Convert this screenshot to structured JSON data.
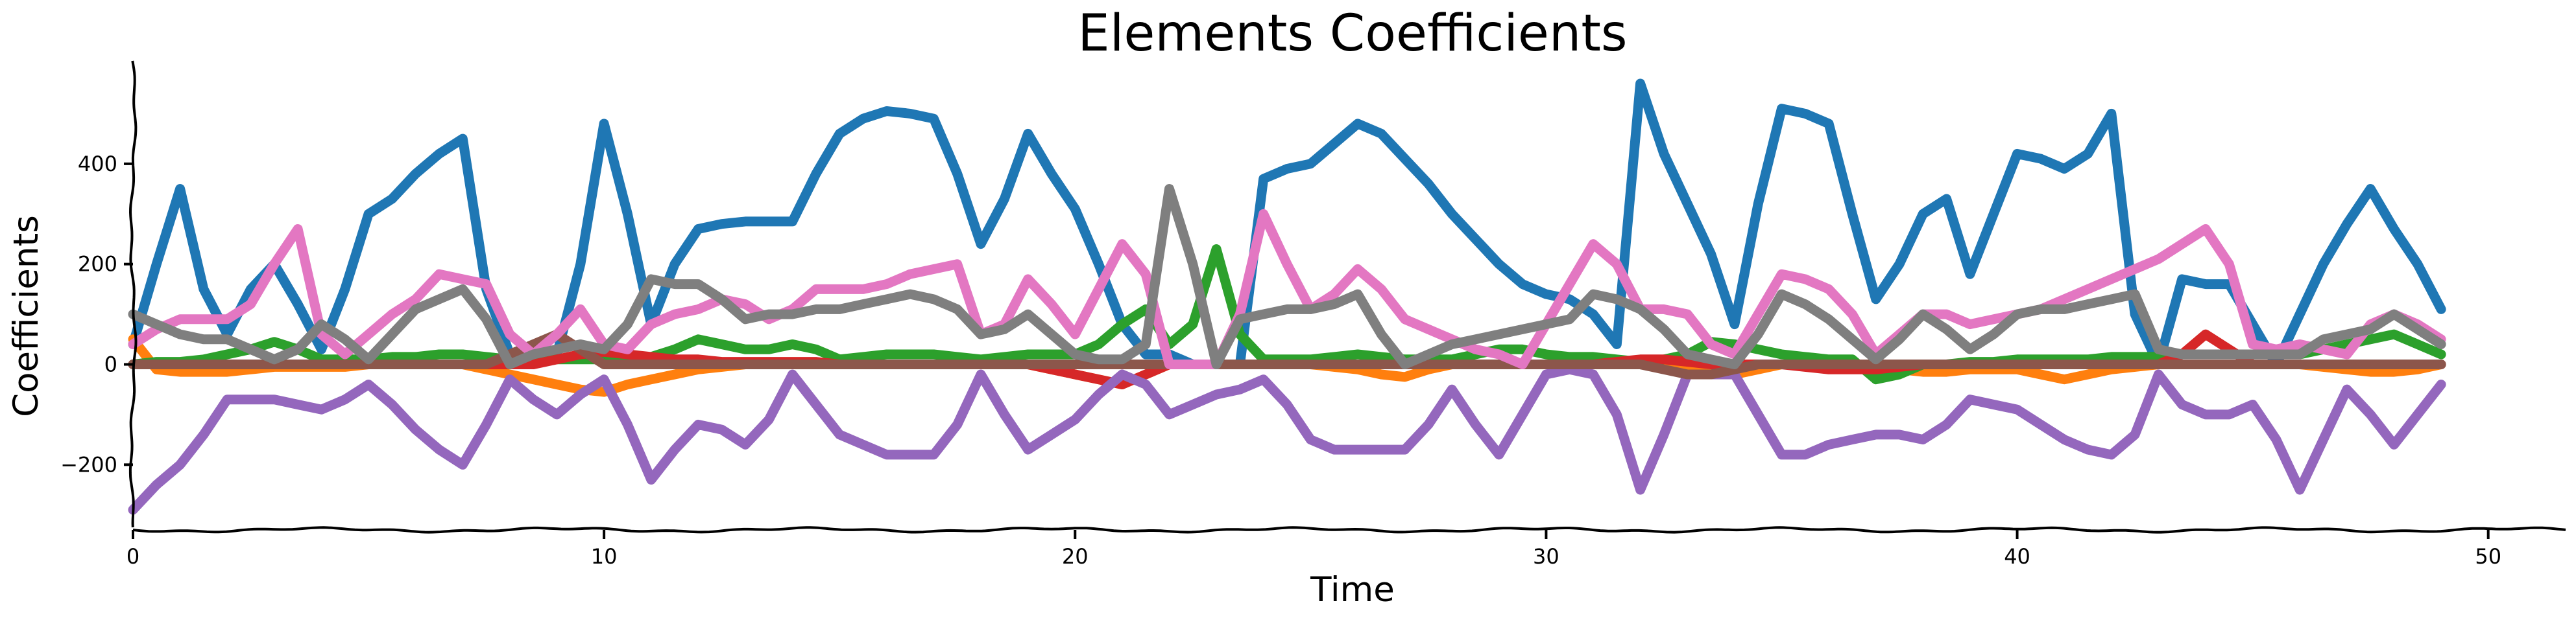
{
  "chart_data": {
    "type": "line",
    "title": "Elements Coefficients",
    "xlabel": "Time",
    "ylabel": "Coefficients",
    "xlim": [
      0,
      50.5
    ],
    "ylim": [
      -330,
      600
    ],
    "xticks": [
      0,
      10,
      20,
      30,
      40,
      50
    ],
    "yticks": [
      -200,
      0,
      200,
      400
    ],
    "xtick_labels": [
      "0",
      "10",
      "20",
      "30",
      "40",
      "50"
    ],
    "ytick_labels": [
      "−200",
      "0",
      "200",
      "400"
    ],
    "legend": "none",
    "grid": false,
    "x": [
      0,
      0.5,
      1,
      1.5,
      2,
      2.5,
      3,
      3.5,
      4,
      4.5,
      5,
      5.5,
      6,
      6.5,
      7,
      7.5,
      8,
      8.5,
      9,
      9.5,
      10,
      10.5,
      11,
      11.5,
      12,
      12.5,
      13,
      13.5,
      14,
      14.5,
      15,
      15.5,
      16,
      16.5,
      17,
      17.5,
      18,
      18.5,
      19,
      19.5,
      20,
      20.5,
      21,
      21.5,
      22,
      22.5,
      23,
      23.5,
      24,
      24.5,
      25,
      25.5,
      26,
      26.5,
      27,
      27.5,
      28,
      28.5,
      29,
      29.5,
      30,
      30.5,
      31,
      31.5,
      32,
      32.5,
      33,
      33.5,
      34,
      34.5,
      35,
      35.5,
      36,
      36.5,
      37,
      37.5,
      38,
      38.5,
      39,
      39.5,
      40,
      40.5,
      41,
      41.5,
      42,
      42.5,
      43,
      43.5,
      44,
      44.5,
      45,
      45.5,
      46,
      46.5,
      47,
      47.5,
      48,
      48.5,
      49
    ],
    "series": [
      {
        "color": "#1f77b4",
        "values": [
          40,
          200,
          350,
          150,
          60,
          150,
          200,
          120,
          30,
          150,
          300,
          330,
          380,
          420,
          450,
          150,
          20,
          20,
          20,
          200,
          480,
          300,
          80,
          200,
          270,
          280,
          285,
          285,
          285,
          380,
          460,
          490,
          505,
          500,
          490,
          380,
          240,
          330,
          460,
          380,
          310,
          200,
          80,
          20,
          20,
          0,
          0,
          0,
          370,
          390,
          400,
          440,
          480,
          460,
          410,
          360,
          300,
          250,
          200,
          160,
          140,
          130,
          100,
          40,
          560,
          420,
          320,
          220,
          80,
          320,
          510,
          500,
          480,
          300,
          130,
          200,
          300,
          330,
          180,
          300,
          420,
          410,
          390,
          420,
          500,
          100,
          0,
          170,
          160,
          160,
          80,
          0,
          100,
          200,
          280,
          350,
          270,
          200,
          110
        ]
      },
      {
        "color": "#ff7f0e",
        "values": [
          50,
          -10,
          -15,
          -15,
          -15,
          -10,
          -5,
          -5,
          -5,
          -5,
          0,
          0,
          0,
          0,
          0,
          -10,
          -20,
          -30,
          -40,
          -50,
          -55,
          -40,
          -30,
          -20,
          -10,
          -5,
          0,
          0,
          0,
          0,
          0,
          0,
          0,
          0,
          0,
          0,
          0,
          0,
          0,
          -10,
          -20,
          -30,
          -40,
          -20,
          0,
          0,
          0,
          0,
          0,
          0,
          0,
          -5,
          -10,
          -20,
          -25,
          -10,
          0,
          0,
          0,
          0,
          0,
          5,
          10,
          5,
          0,
          -5,
          -10,
          -15,
          -20,
          -10,
          0,
          0,
          0,
          -5,
          -10,
          -10,
          -15,
          -15,
          -10,
          -10,
          -10,
          -20,
          -30,
          -20,
          -10,
          -5,
          0,
          0,
          0,
          0,
          0,
          0,
          0,
          -5,
          -10,
          -15,
          -15,
          -10,
          0
        ]
      },
      {
        "color": "#2ca02c",
        "values": [
          0,
          5,
          5,
          10,
          20,
          30,
          45,
          30,
          10,
          10,
          10,
          15,
          15,
          20,
          20,
          15,
          10,
          10,
          10,
          10,
          10,
          10,
          15,
          30,
          50,
          40,
          30,
          30,
          40,
          30,
          10,
          15,
          20,
          20,
          20,
          15,
          10,
          15,
          20,
          20,
          20,
          40,
          80,
          110,
          40,
          80,
          230,
          60,
          10,
          10,
          10,
          15,
          20,
          15,
          10,
          10,
          10,
          20,
          30,
          30,
          20,
          15,
          15,
          10,
          5,
          10,
          20,
          45,
          40,
          30,
          20,
          15,
          10,
          10,
          -30,
          -20,
          0,
          0,
          5,
          5,
          10,
          10,
          10,
          10,
          15,
          15,
          15,
          20,
          20,
          20,
          20,
          20,
          20,
          30,
          40,
          50,
          60,
          40,
          20
        ]
      },
      {
        "color": "#d62728",
        "values": [
          0,
          0,
          0,
          0,
          0,
          0,
          0,
          0,
          0,
          0,
          0,
          0,
          0,
          0,
          0,
          0,
          0,
          0,
          10,
          20,
          25,
          20,
          15,
          10,
          10,
          5,
          5,
          5,
          5,
          5,
          0,
          0,
          0,
          0,
          0,
          0,
          0,
          0,
          0,
          -10,
          -20,
          -30,
          -40,
          -20,
          0,
          0,
          0,
          0,
          0,
          0,
          0,
          0,
          0,
          0,
          0,
          0,
          0,
          0,
          0,
          0,
          0,
          0,
          0,
          5,
          10,
          10,
          5,
          0,
          0,
          0,
          0,
          -5,
          -10,
          -10,
          -10,
          -5,
          0,
          0,
          0,
          0,
          0,
          0,
          0,
          0,
          0,
          0,
          0,
          20,
          60,
          30,
          0,
          0,
          0,
          0,
          0,
          0,
          0,
          0,
          0
        ]
      },
      {
        "color": "#9467bd",
        "values": [
          -290,
          -240,
          -200,
          -140,
          -70,
          -70,
          -70,
          -80,
          -90,
          -70,
          -40,
          -80,
          -130,
          -170,
          -200,
          -120,
          -30,
          -70,
          -100,
          -60,
          -30,
          -120,
          -230,
          -170,
          -120,
          -130,
          -160,
          -110,
          -20,
          -80,
          -140,
          -160,
          -180,
          -180,
          -180,
          -120,
          -20,
          -100,
          -170,
          -140,
          -110,
          -60,
          -20,
          -40,
          -100,
          -80,
          -60,
          -50,
          -30,
          -80,
          -150,
          -170,
          -170,
          -170,
          -170,
          -120,
          -50,
          -120,
          -180,
          -100,
          -20,
          -10,
          -20,
          -100,
          -250,
          -140,
          -20,
          -20,
          -20,
          -100,
          -180,
          -180,
          -160,
          -150,
          -140,
          -140,
          -150,
          -120,
          -70,
          -80,
          -90,
          -120,
          -150,
          -170,
          -180,
          -140,
          -20,
          -80,
          -100,
          -100,
          -80,
          -150,
          -250,
          -150,
          -50,
          -100,
          -160,
          -100,
          -40
        ]
      },
      {
        "color": "#8c564b",
        "values": [
          0,
          0,
          0,
          0,
          0,
          0,
          0,
          0,
          0,
          0,
          0,
          0,
          0,
          0,
          0,
          0,
          20,
          40,
          60,
          30,
          0,
          0,
          0,
          0,
          0,
          0,
          0,
          0,
          0,
          0,
          0,
          0,
          0,
          0,
          0,
          0,
          0,
          0,
          0,
          0,
          0,
          0,
          0,
          0,
          0,
          0,
          0,
          0,
          0,
          0,
          0,
          0,
          0,
          0,
          0,
          0,
          0,
          0,
          0,
          0,
          0,
          0,
          0,
          0,
          0,
          -10,
          -20,
          -20,
          -10,
          0,
          0,
          0,
          0,
          0,
          0,
          0,
          0,
          0,
          0,
          0,
          0,
          0,
          0,
          0,
          0,
          0,
          0,
          0,
          0,
          0,
          0,
          0,
          0,
          0,
          0,
          0,
          0,
          0,
          0
        ]
      },
      {
        "color": "#e377c2",
        "values": [
          40,
          70,
          90,
          90,
          90,
          120,
          200,
          270,
          60,
          20,
          60,
          100,
          130,
          180,
          170,
          160,
          60,
          20,
          60,
          110,
          40,
          30,
          80,
          100,
          110,
          130,
          120,
          90,
          110,
          150,
          150,
          150,
          160,
          180,
          190,
          200,
          60,
          80,
          170,
          120,
          60,
          150,
          240,
          180,
          0,
          0,
          0,
          100,
          300,
          200,
          110,
          140,
          190,
          150,
          90,
          70,
          50,
          30,
          20,
          0,
          80,
          160,
          240,
          200,
          110,
          110,
          100,
          40,
          20,
          100,
          180,
          170,
          150,
          100,
          20,
          60,
          100,
          100,
          80,
          90,
          100,
          110,
          130,
          150,
          170,
          190,
          210,
          240,
          270,
          200,
          40,
          30,
          40,
          30,
          20,
          80,
          100,
          80,
          50
        ]
      },
      {
        "color": "#7f7f7f",
        "values": [
          100,
          80,
          60,
          50,
          50,
          30,
          10,
          30,
          80,
          50,
          10,
          60,
          110,
          130,
          150,
          90,
          0,
          20,
          30,
          40,
          30,
          80,
          170,
          160,
          160,
          130,
          90,
          100,
          100,
          110,
          110,
          120,
          130,
          140,
          130,
          110,
          60,
          70,
          100,
          60,
          20,
          10,
          10,
          40,
          350,
          200,
          0,
          90,
          100,
          110,
          110,
          120,
          140,
          60,
          0,
          20,
          40,
          50,
          60,
          70,
          80,
          90,
          140,
          130,
          110,
          70,
          20,
          10,
          0,
          60,
          140,
          120,
          90,
          50,
          10,
          50,
          100,
          70,
          30,
          60,
          100,
          110,
          110,
          120,
          130,
          140,
          30,
          20,
          20,
          20,
          20,
          20,
          20,
          50,
          60,
          70,
          100,
          70,
          40
        ]
      }
    ]
  }
}
